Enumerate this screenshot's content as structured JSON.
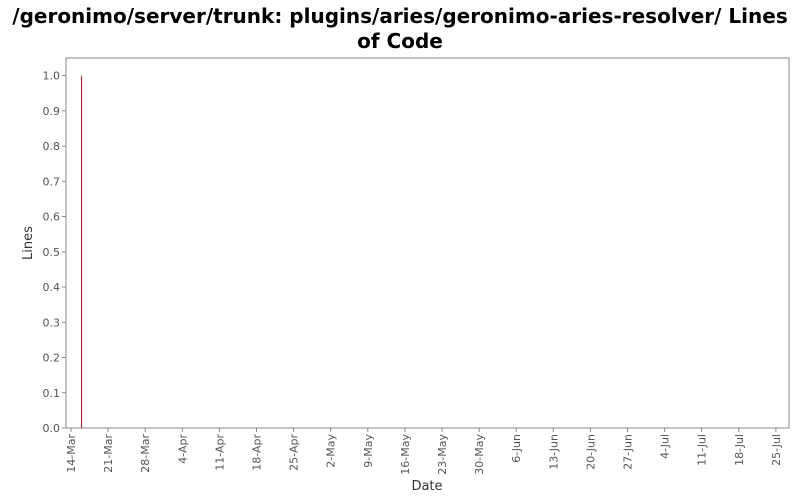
{
  "chart_data": {
    "type": "line",
    "title": "/geronimo/server/trunk: plugins/aries/geronimo-aries-resolver/ Lines of Code",
    "xlabel": "Date",
    "ylabel": "Lines",
    "x_ticks": [
      "14-Mar",
      "21-Mar",
      "28-Mar",
      "4-Apr",
      "11-Apr",
      "18-Apr",
      "25-Apr",
      "2-May",
      "9-May",
      "16-May",
      "23-May",
      "30-May",
      "6-Jun",
      "13-Jun",
      "20-Jun",
      "27-Jun",
      "4-Jul",
      "11-Jul",
      "18-Jul",
      "25-Jul"
    ],
    "y_ticks": [
      "0.0",
      "0.1",
      "0.2",
      "0.3",
      "0.4",
      "0.5",
      "0.6",
      "0.7",
      "0.8",
      "0.9",
      "1.0"
    ],
    "ylim": [
      0,
      1.05
    ],
    "grid": false,
    "series": [
      {
        "color": "#aa1122",
        "points": [
          {
            "x": "16-Mar",
            "y": 1.0
          },
          {
            "x": "16-Mar",
            "y": 0.0
          }
        ]
      }
    ]
  }
}
